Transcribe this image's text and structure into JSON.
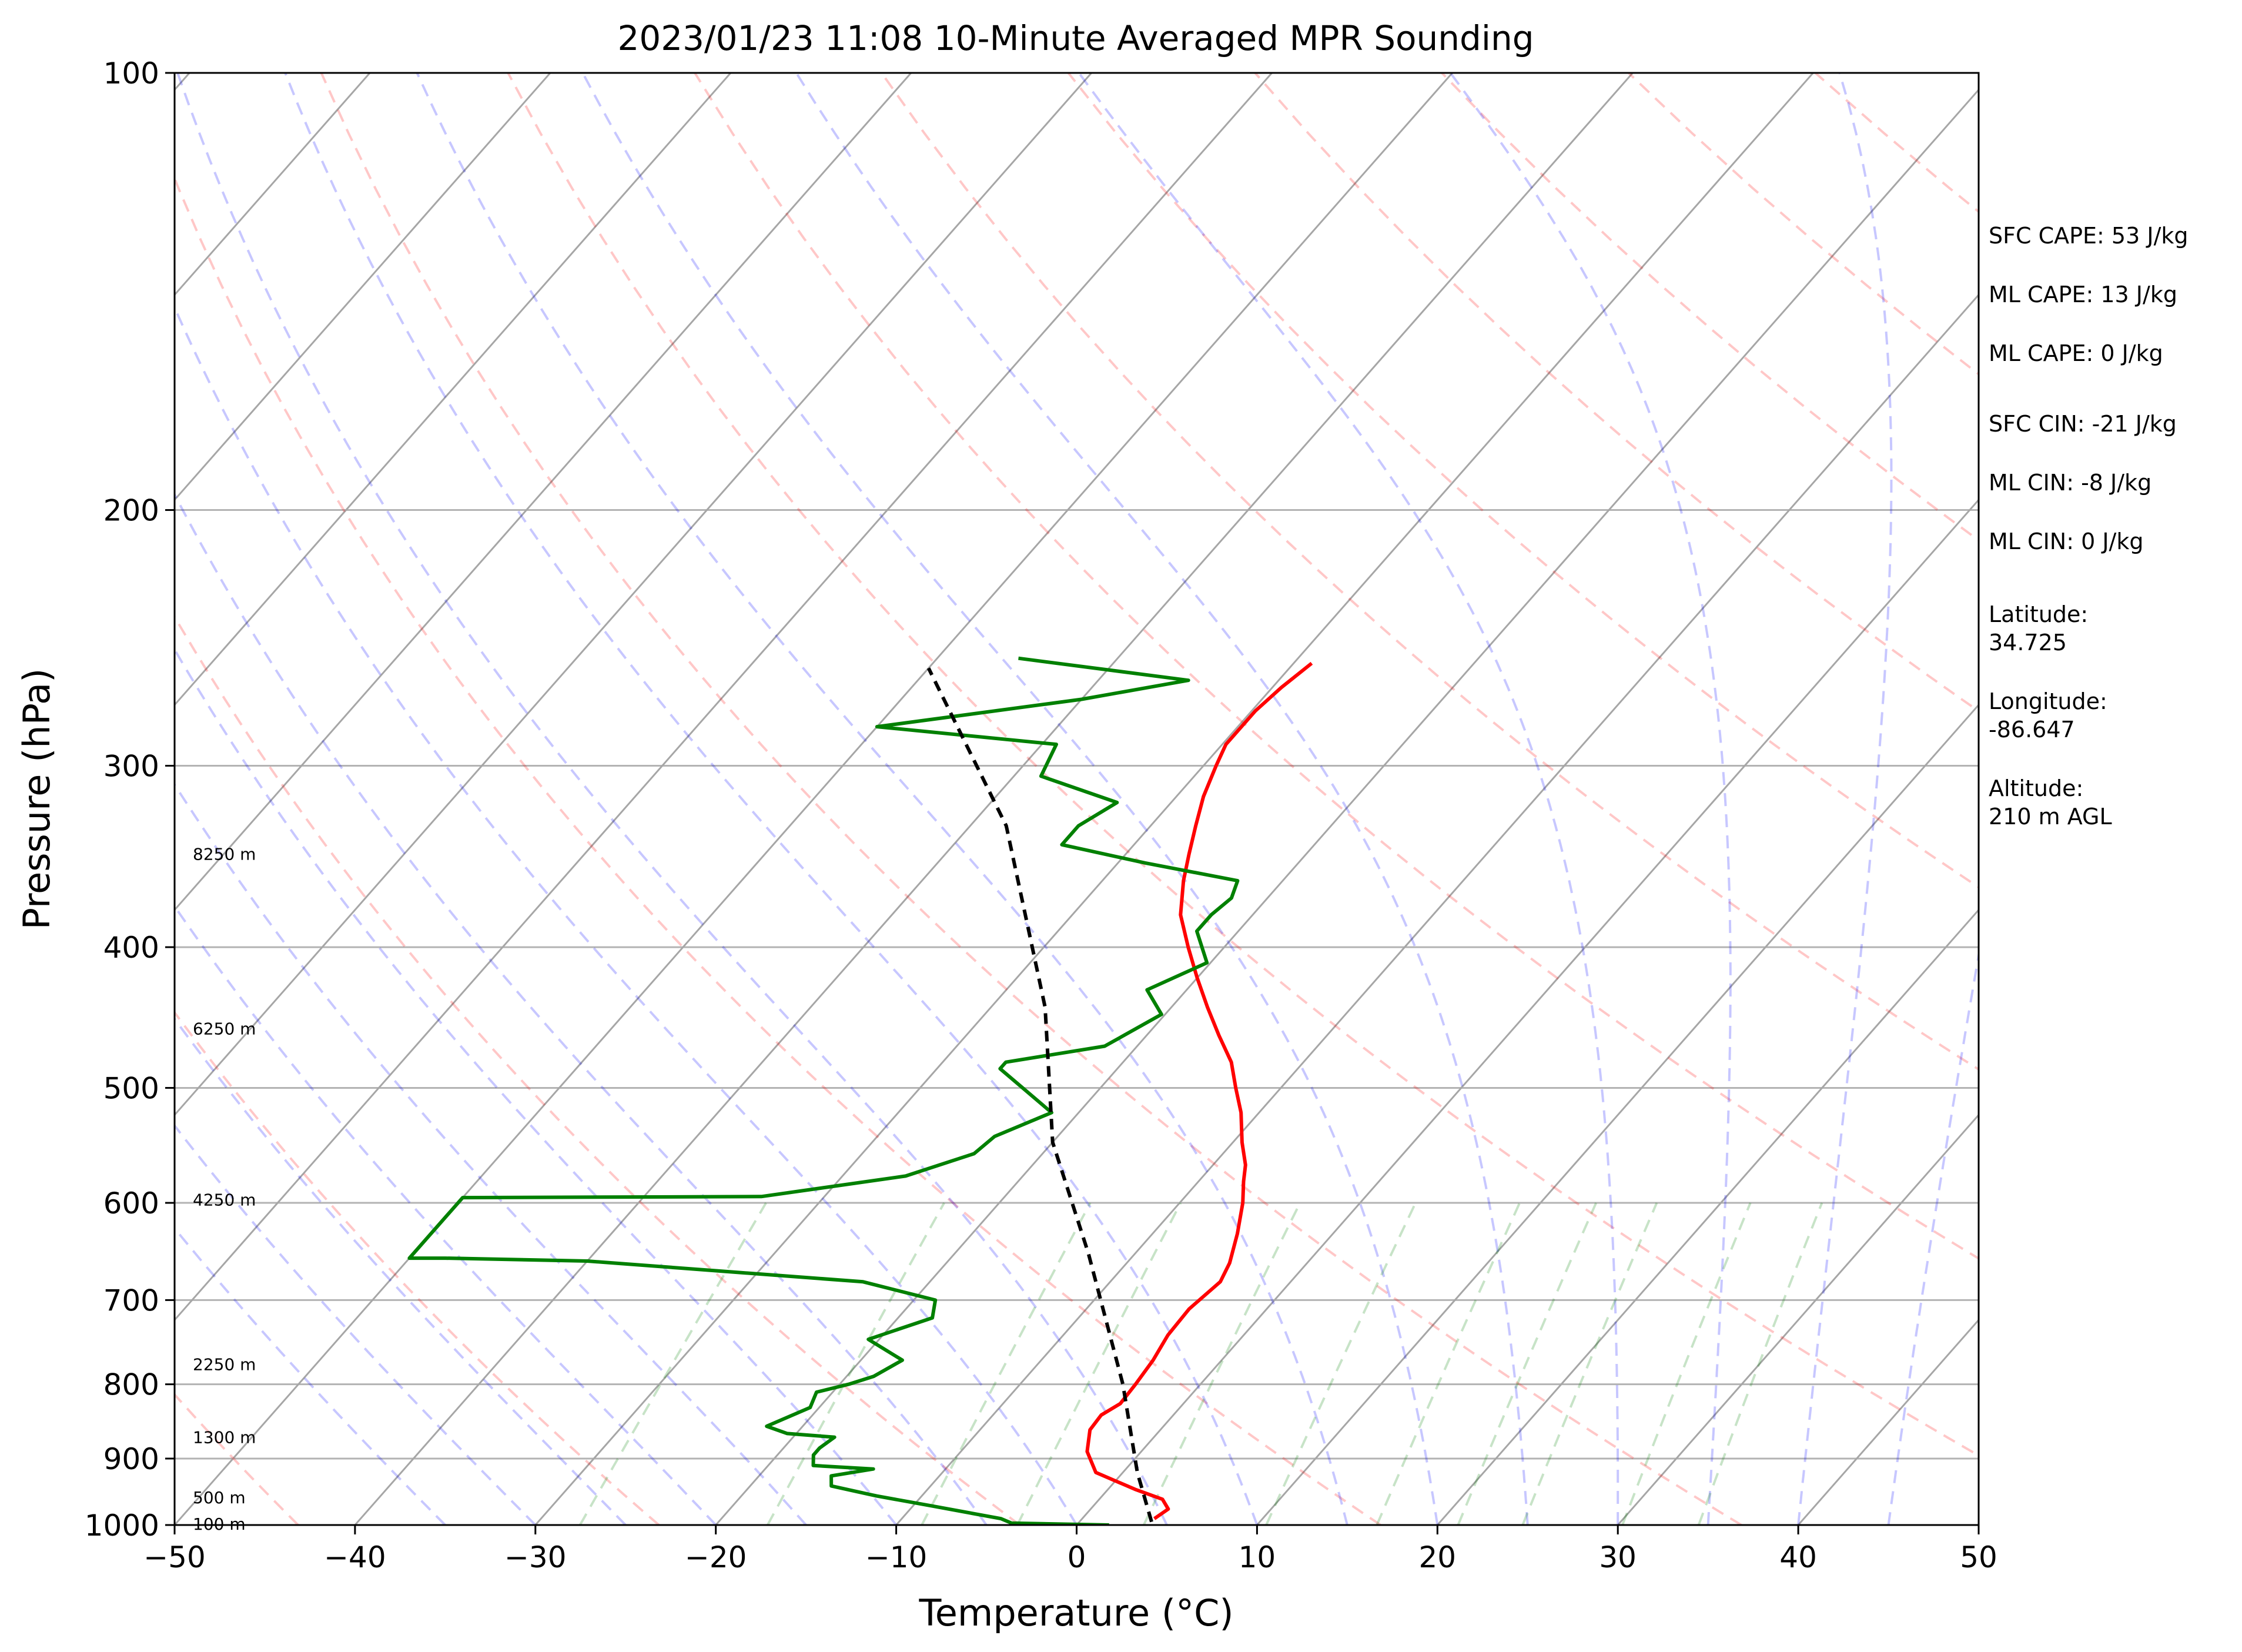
{
  "chart_data": {
    "type": "line",
    "title": "2023/01/23 11:08 10-Minute Averaged MPR Sounding",
    "xlabel": "Temperature (°C)",
    "ylabel": "Pressure (hPa)",
    "xlim": [
      -50,
      50
    ],
    "ylim": [
      1000,
      100
    ],
    "y_scale": "log",
    "x_ticks": [
      "−50",
      "−40",
      "−30",
      "−20",
      "−10",
      "0",
      "10",
      "20",
      "30",
      "40",
      "50"
    ],
    "y_ticks": [
      "100",
      "200",
      "300",
      "400",
      "500",
      "600",
      "700",
      "800",
      "900",
      "1000"
    ],
    "grid": true,
    "skew_t": true,
    "series": [
      {
        "color": "#ff0000",
        "points": [
          {
            "t": 4.0,
            "p": 990
          },
          {
            "t": 4.3,
            "p": 975
          },
          {
            "t": 3.5,
            "p": 960
          },
          {
            "t": 1.5,
            "p": 945
          },
          {
            "t": -1.5,
            "p": 920
          },
          {
            "t": -3.0,
            "p": 890
          },
          {
            "t": -3.9,
            "p": 860
          },
          {
            "t": -4.0,
            "p": 840
          },
          {
            "t": -3.5,
            "p": 825
          },
          {
            "t": -3.6,
            "p": 800
          },
          {
            "t": -3.8,
            "p": 770
          },
          {
            "t": -4.2,
            "p": 740
          },
          {
            "t": -4.3,
            "p": 710
          },
          {
            "t": -3.9,
            "p": 680
          },
          {
            "t": -4.3,
            "p": 660
          },
          {
            "t": -5.3,
            "p": 630
          },
          {
            "t": -6.5,
            "p": 600
          },
          {
            "t": -7.5,
            "p": 580
          },
          {
            "t": -8.2,
            "p": 565
          },
          {
            "t": -9.5,
            "p": 545
          },
          {
            "t": -11.0,
            "p": 520
          },
          {
            "t": -12.5,
            "p": 500
          },
          {
            "t": -14.0,
            "p": 480
          },
          {
            "t": -16.0,
            "p": 460
          },
          {
            "t": -18.0,
            "p": 440
          },
          {
            "t": -20.0,
            "p": 420
          },
          {
            "t": -22.0,
            "p": 400
          },
          {
            "t": -24.0,
            "p": 380
          },
          {
            "t": -25.5,
            "p": 360
          },
          {
            "t": -26.5,
            "p": 345
          },
          {
            "t": -27.5,
            "p": 330
          },
          {
            "t": -28.5,
            "p": 315
          },
          {
            "t": -29.3,
            "p": 300
          },
          {
            "t": -29.8,
            "p": 290
          },
          {
            "t": -29.8,
            "p": 275
          },
          {
            "t": -29.5,
            "p": 265
          },
          {
            "t": -29.0,
            "p": 255
          }
        ]
      },
      {
        "color": "#008000",
        "points": [
          {
            "t": 1.8,
            "p": 1000
          },
          {
            "t": -3.7,
            "p": 997
          },
          {
            "t": -4.5,
            "p": 990
          },
          {
            "t": -9.0,
            "p": 970
          },
          {
            "t": -12.5,
            "p": 955
          },
          {
            "t": -15.5,
            "p": 940
          },
          {
            "t": -16.0,
            "p": 925
          },
          {
            "t": -14.0,
            "p": 915
          },
          {
            "t": -17.5,
            "p": 910
          },
          {
            "t": -18.0,
            "p": 895
          },
          {
            "t": -18.0,
            "p": 885
          },
          {
            "t": -17.7,
            "p": 870
          },
          {
            "t": -20.5,
            "p": 865
          },
          {
            "t": -22.0,
            "p": 855
          },
          {
            "t": -20.5,
            "p": 830
          },
          {
            "t": -20.9,
            "p": 810
          },
          {
            "t": -19.5,
            "p": 800
          },
          {
            "t": -18.5,
            "p": 790
          },
          {
            "t": -17.7,
            "p": 770
          },
          {
            "t": -20.6,
            "p": 745
          },
          {
            "t": -18.1,
            "p": 720
          },
          {
            "t": -18.8,
            "p": 700
          },
          {
            "t": -23.7,
            "p": 680
          },
          {
            "t": -40.0,
            "p": 658
          },
          {
            "t": -48.0,
            "p": 655
          },
          {
            "t": -50.0,
            "p": 655
          },
          {
            "t": -50.0,
            "p": 595
          },
          {
            "t": -33.5,
            "p": 594
          },
          {
            "t": -26.5,
            "p": 575
          },
          {
            "t": -23.8,
            "p": 555
          },
          {
            "t": -23.5,
            "p": 540
          },
          {
            "t": -21.5,
            "p": 520
          },
          {
            "t": -26.5,
            "p": 485
          },
          {
            "t": -26.5,
            "p": 480
          },
          {
            "t": -21.8,
            "p": 468
          },
          {
            "t": -20.2,
            "p": 445
          },
          {
            "t": -22.2,
            "p": 428
          },
          {
            "t": -20.2,
            "p": 410
          },
          {
            "t": -22.3,
            "p": 390
          },
          {
            "t": -22.3,
            "p": 380
          },
          {
            "t": -22.0,
            "p": 370
          },
          {
            "t": -22.5,
            "p": 360
          },
          {
            "t": -28.5,
            "p": 350
          },
          {
            "t": -34.0,
            "p": 340
          },
          {
            "t": -34.0,
            "p": 330
          },
          {
            "t": -33.0,
            "p": 318
          },
          {
            "t": -38.5,
            "p": 305
          },
          {
            "t": -39.2,
            "p": 290
          },
          {
            "t": -50.0,
            "p": 282
          },
          {
            "t": -40.0,
            "p": 270
          },
          {
            "t": -35.0,
            "p": 262
          },
          {
            "t": -45.5,
            "p": 253
          }
        ]
      },
      {
        "color": "#000000",
        "dashed": true,
        "points": [
          {
            "t": 4.0,
            "p": 995
          },
          {
            "t": 0.8,
            "p": 920
          },
          {
            "t": -4.3,
            "p": 800
          },
          {
            "t": -12.6,
            "p": 650
          },
          {
            "t": -20.0,
            "p": 545
          },
          {
            "t": -27.0,
            "p": 440
          },
          {
            "t": -38.0,
            "p": 330
          },
          {
            "t": -50.0,
            "p": 257
          }
        ]
      }
    ],
    "height_labels": [
      {
        "text": "8250 m",
        "p": 345
      },
      {
        "text": "6250 m",
        "p": 455
      },
      {
        "text": "4250 m",
        "p": 597
      },
      {
        "text": "2250 m",
        "p": 775
      },
      {
        "text": "1300 m",
        "p": 870
      },
      {
        "text": "500 m",
        "p": 957
      },
      {
        "text": "100 m",
        "p": 998
      }
    ],
    "annotations": [
      "SFC CAPE: 53 J/kg",
      "ML CAPE: 13 J/kg",
      "ML CAPE: 0 J/kg",
      "SFC CIN: -21 J/kg",
      "ML CIN: -8 J/kg",
      "ML CIN: 0 J/kg",
      [
        "Latitude:",
        "34.725"
      ],
      [
        "Longitude:",
        "-86.647"
      ],
      [
        "Altitude:",
        "210 m AGL"
      ]
    ]
  }
}
